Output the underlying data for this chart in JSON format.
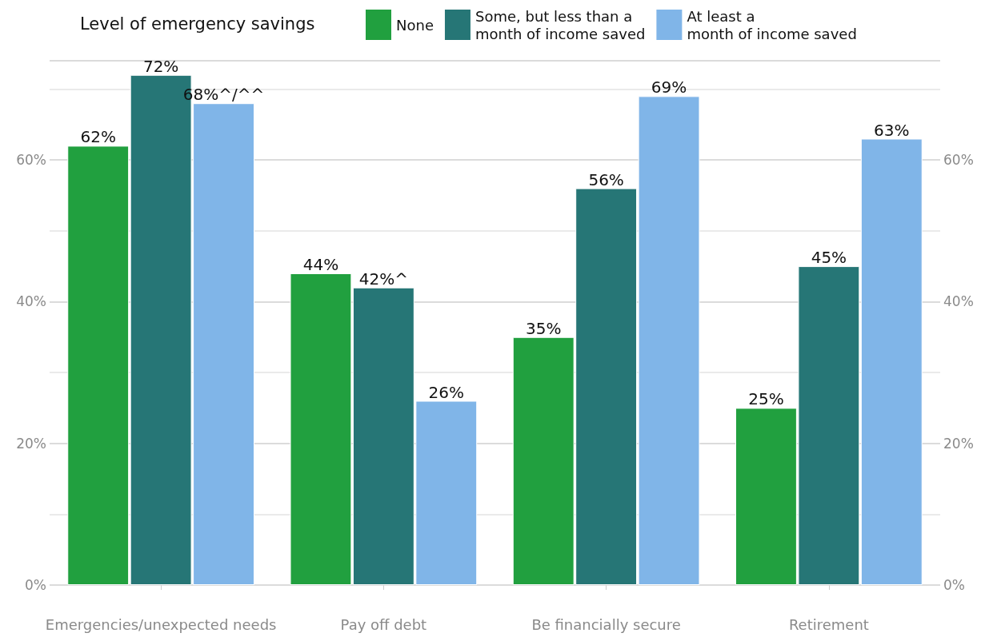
{
  "chart_data": {
    "type": "bar",
    "legend_title": "Level of emergency savings",
    "legend": "top",
    "grid": "y",
    "categories": [
      "Emergencies/unexpected needs",
      "Pay off debt",
      "Be financially secure",
      "Retirement"
    ],
    "series": [
      {
        "name": "None",
        "color": "#21a03f",
        "values": [
          62,
          44,
          35,
          25
        ],
        "value_labels": [
          "62%",
          "44%",
          "35%",
          "25%"
        ]
      },
      {
        "name": "Some, but less than a\nmonth of income saved",
        "color": "#267676",
        "values": [
          72,
          42,
          56,
          45
        ],
        "value_labels": [
          "72%",
          "42%^",
          "56%",
          "45%"
        ]
      },
      {
        "name": "At least a\nmonth of income saved",
        "color": "#80b5e8",
        "values": [
          68,
          26,
          69,
          63
        ],
        "value_labels": [
          "68%^/^^",
          "26%",
          "69%",
          "63%"
        ]
      }
    ],
    "ylim": [
      0,
      74
    ],
    "yticks": [
      {
        "value": 0,
        "label": "0%"
      },
      {
        "value": 10,
        "label": null
      },
      {
        "value": 20,
        "label": "20%"
      },
      {
        "value": 30,
        "label": null
      },
      {
        "value": 40,
        "label": "40%"
      },
      {
        "value": 50,
        "label": null
      },
      {
        "value": 60,
        "label": "60%"
      },
      {
        "value": 70,
        "label": null
      }
    ],
    "y2lim": [
      0,
      74
    ],
    "y2ticks": [
      {
        "value": 0,
        "label": "0%"
      },
      {
        "value": 10,
        "label": null
      },
      {
        "value": 20,
        "label": "20%"
      },
      {
        "value": 30,
        "label": null
      },
      {
        "value": 40,
        "label": "40%"
      },
      {
        "value": 50,
        "label": null
      },
      {
        "value": 60,
        "label": "60%"
      },
      {
        "value": 70,
        "label": null
      }
    ]
  }
}
